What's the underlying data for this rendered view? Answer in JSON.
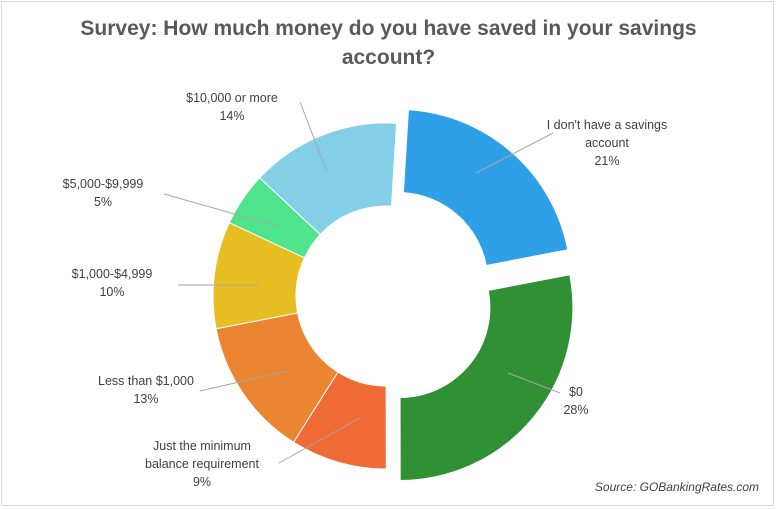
{
  "chart_data": {
    "type": "pie",
    "title_lines": [
      "Survey: How much money do you have saved in your savings",
      "account?"
    ],
    "slices": [
      {
        "label_lines": [
          "I don't have a savings",
          "account"
        ],
        "value_label": "21%",
        "value": 21,
        "color": "#2f9fe8",
        "exploded": true
      },
      {
        "label_lines": [
          "$0"
        ],
        "value_label": "28%",
        "value": 28,
        "color": "#2f9133",
        "exploded": true
      },
      {
        "label_lines": [
          "Just the minimum",
          "balance requirement"
        ],
        "value_label": "9%",
        "value": 9,
        "color": "#ef6a35",
        "exploded": false
      },
      {
        "label_lines": [
          "Less than $1,000"
        ],
        "value_label": "13%",
        "value": 13,
        "color": "#ec8531",
        "exploded": false
      },
      {
        "label_lines": [
          "$1,000-$4,999"
        ],
        "value_label": "10%",
        "value": 10,
        "color": "#e7be22",
        "exploded": false
      },
      {
        "label_lines": [
          "$5,000-$9,999"
        ],
        "value_label": "5%",
        "value": 5,
        "color": "#4ee48c",
        "exploded": false
      },
      {
        "label_lines": [
          "$10,000 or more"
        ],
        "value_label": "14%",
        "value": 14,
        "color": "#84cfe8",
        "exploded": false
      }
    ],
    "legend": "none",
    "source": "Source: GOBankingRates.com"
  }
}
